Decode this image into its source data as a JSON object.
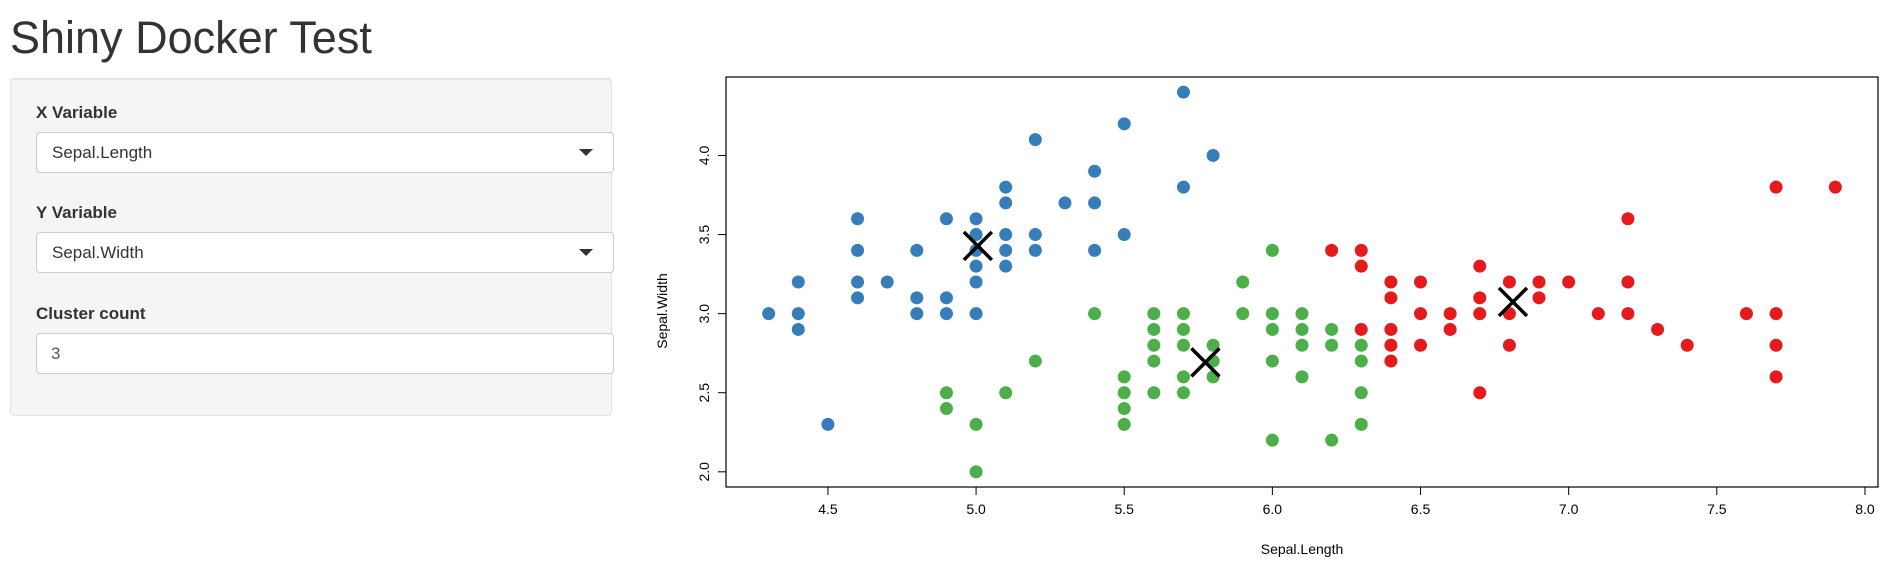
{
  "app": {
    "title": "Shiny Docker Test"
  },
  "sidebar": {
    "x_variable": {
      "label": "X Variable",
      "value": "Sepal.Length"
    },
    "y_variable": {
      "label": "Y Variable",
      "value": "Sepal.Width"
    },
    "cluster_count": {
      "label": "Cluster count",
      "value": "3"
    }
  },
  "colors": {
    "cluster_1": "#377EB8",
    "cluster_2": "#4DAF4A",
    "cluster_3": "#E41A1C",
    "centers": "#000000"
  },
  "chart_data": {
    "type": "scatter",
    "title": "",
    "xlabel": "Sepal.Length",
    "ylabel": "Sepal.Width",
    "xlim": [
      4.3,
      7.9
    ],
    "ylim": [
      2.0,
      4.4
    ],
    "xticks": [
      "4.5",
      "5.0",
      "5.5",
      "6.0",
      "6.5",
      "7.0",
      "7.5",
      "8.0"
    ],
    "yticks": [
      "2.0",
      "2.5",
      "3.0",
      "3.5",
      "4.0"
    ],
    "grid": false,
    "series": [
      {
        "color": "#377EB8",
        "points": [
          [
            4.3,
            3.0
          ],
          [
            4.4,
            2.9
          ],
          [
            4.4,
            3.0
          ],
          [
            4.4,
            3.2
          ],
          [
            4.5,
            2.3
          ],
          [
            4.6,
            3.1
          ],
          [
            4.6,
            3.2
          ],
          [
            4.6,
            3.4
          ],
          [
            4.6,
            3.6
          ],
          [
            4.7,
            3.2
          ],
          [
            4.8,
            3.0
          ],
          [
            4.8,
            3.1
          ],
          [
            4.8,
            3.4
          ],
          [
            4.9,
            3.0
          ],
          [
            4.9,
            3.1
          ],
          [
            4.9,
            3.6
          ],
          [
            5.0,
            3.0
          ],
          [
            5.0,
            3.2
          ],
          [
            5.0,
            3.3
          ],
          [
            5.0,
            3.4
          ],
          [
            5.0,
            3.5
          ],
          [
            5.0,
            3.6
          ],
          [
            5.1,
            3.3
          ],
          [
            5.1,
            3.4
          ],
          [
            5.1,
            3.5
          ],
          [
            5.1,
            3.7
          ],
          [
            5.1,
            3.8
          ],
          [
            5.2,
            3.4
          ],
          [
            5.2,
            3.5
          ],
          [
            5.2,
            4.1
          ],
          [
            5.3,
            3.7
          ],
          [
            5.4,
            3.4
          ],
          [
            5.4,
            3.7
          ],
          [
            5.4,
            3.9
          ],
          [
            5.5,
            3.5
          ],
          [
            5.5,
            4.2
          ],
          [
            5.7,
            3.8
          ],
          [
            5.7,
            4.4
          ],
          [
            5.8,
            4.0
          ]
        ]
      },
      {
        "color": "#4DAF4A",
        "points": [
          [
            4.9,
            2.4
          ],
          [
            4.9,
            2.5
          ],
          [
            5.0,
            2.0
          ],
          [
            5.0,
            2.3
          ],
          [
            5.1,
            2.5
          ],
          [
            5.2,
            2.7
          ],
          [
            5.4,
            3.0
          ],
          [
            5.5,
            2.3
          ],
          [
            5.5,
            2.4
          ],
          [
            5.5,
            2.5
          ],
          [
            5.5,
            2.6
          ],
          [
            5.6,
            2.5
          ],
          [
            5.6,
            2.7
          ],
          [
            5.6,
            2.8
          ],
          [
            5.6,
            2.9
          ],
          [
            5.6,
            3.0
          ],
          [
            5.7,
            2.5
          ],
          [
            5.7,
            2.6
          ],
          [
            5.7,
            2.8
          ],
          [
            5.7,
            2.9
          ],
          [
            5.7,
            3.0
          ],
          [
            5.8,
            2.6
          ],
          [
            5.8,
            2.7
          ],
          [
            5.8,
            2.8
          ],
          [
            5.9,
            3.0
          ],
          [
            5.9,
            3.2
          ],
          [
            6.0,
            2.2
          ],
          [
            6.0,
            2.7
          ],
          [
            6.0,
            2.9
          ],
          [
            6.0,
            3.0
          ],
          [
            6.0,
            3.4
          ],
          [
            6.1,
            2.6
          ],
          [
            6.1,
            2.8
          ],
          [
            6.1,
            2.9
          ],
          [
            6.1,
            3.0
          ],
          [
            6.2,
            2.2
          ],
          [
            6.2,
            2.8
          ],
          [
            6.2,
            2.9
          ],
          [
            6.3,
            2.3
          ],
          [
            6.3,
            2.5
          ],
          [
            6.3,
            2.7
          ],
          [
            6.3,
            2.8
          ]
        ]
      },
      {
        "color": "#E41A1C",
        "points": [
          [
            6.2,
            3.4
          ],
          [
            6.3,
            2.9
          ],
          [
            6.3,
            3.3
          ],
          [
            6.3,
            3.4
          ],
          [
            6.4,
            2.7
          ],
          [
            6.4,
            2.8
          ],
          [
            6.4,
            2.9
          ],
          [
            6.4,
            3.1
          ],
          [
            6.4,
            3.2
          ],
          [
            6.5,
            2.8
          ],
          [
            6.5,
            3.0
          ],
          [
            6.5,
            3.2
          ],
          [
            6.6,
            2.9
          ],
          [
            6.6,
            3.0
          ],
          [
            6.7,
            2.5
          ],
          [
            6.7,
            3.0
          ],
          [
            6.7,
            3.1
          ],
          [
            6.7,
            3.3
          ],
          [
            6.8,
            2.8
          ],
          [
            6.8,
            3.0
          ],
          [
            6.8,
            3.2
          ],
          [
            6.9,
            3.1
          ],
          [
            6.9,
            3.2
          ],
          [
            7.0,
            3.2
          ],
          [
            7.1,
            3.0
          ],
          [
            7.2,
            3.0
          ],
          [
            7.2,
            3.2
          ],
          [
            7.2,
            3.6
          ],
          [
            7.3,
            2.9
          ],
          [
            7.4,
            2.8
          ],
          [
            7.6,
            3.0
          ],
          [
            7.7,
            2.6
          ],
          [
            7.7,
            2.8
          ],
          [
            7.7,
            3.0
          ],
          [
            7.7,
            3.8
          ],
          [
            7.9,
            3.8
          ]
        ]
      }
    ],
    "centers": [
      [
        5.006,
        3.428
      ],
      [
        5.774,
        2.692
      ],
      [
        6.812,
        3.074
      ]
    ]
  }
}
